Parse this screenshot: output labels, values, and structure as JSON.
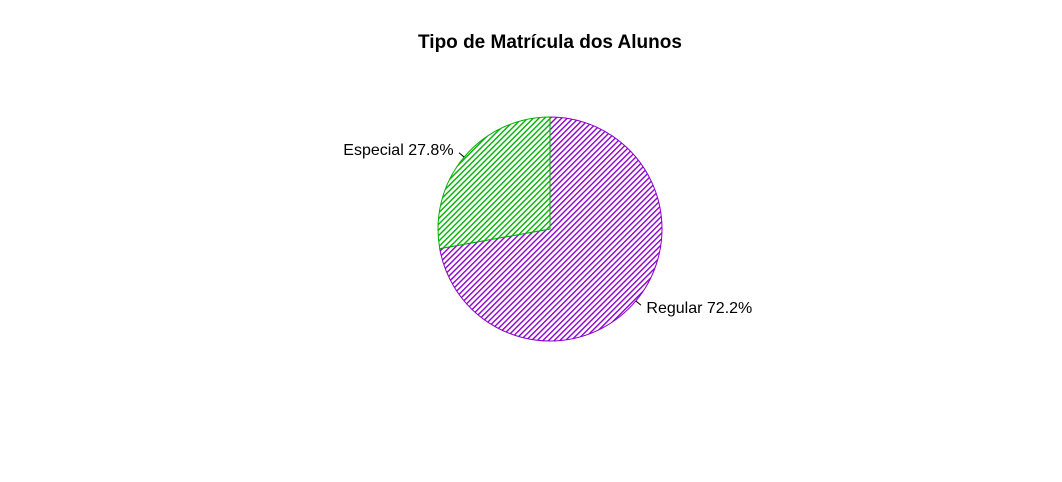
{
  "chart_data": {
    "type": "pie",
    "title": "Tipo de Matrícula dos Alunos",
    "slices": [
      {
        "label": "Regular",
        "percent_text": "72.2%",
        "value": 72.2,
        "color": "#8a00cc",
        "fill_pattern": "diagonal-hatch"
      },
      {
        "label": "Especial",
        "percent_text": "27.8%",
        "value": 27.8,
        "color": "#00b000",
        "fill_pattern": "diagonal-hatch"
      }
    ],
    "start": "top",
    "direction": "clockwise",
    "legend": "none"
  }
}
